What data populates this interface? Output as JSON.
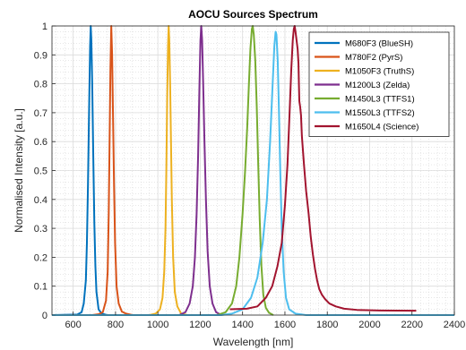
{
  "chart_data": {
    "type": "line",
    "title": "AOCU Sources Spectrum",
    "xlabel": "Wavelength [nm]",
    "ylabel": "Normalised Intensity [a.u.]",
    "xlim": [
      500,
      2400
    ],
    "ylim": [
      0,
      1
    ],
    "xticks": [
      600,
      800,
      1000,
      1200,
      1400,
      1600,
      1800,
      2000,
      2200,
      2400
    ],
    "yticks": [
      0,
      0.1,
      0.2,
      0.3,
      0.4,
      0.5,
      0.6,
      0.7,
      0.8,
      0.9,
      1
    ],
    "xtick_labels": [
      "600",
      "800",
      "1000",
      "1200",
      "1400",
      "1600",
      "1800",
      "2000",
      "2200",
      "2400"
    ],
    "ytick_labels": [
      "0",
      "0.1",
      "0.2",
      "0.3",
      "0.4",
      "0.5",
      "0.6",
      "0.7",
      "0.8",
      "0.9",
      "1"
    ],
    "grid": true,
    "minor_grid": true,
    "legend_position": "top-right",
    "series": [
      {
        "name": "M680F3 (BlueSH)",
        "color": "#0072BD",
        "points": [
          [
            500,
            0
          ],
          [
            620,
            0.002
          ],
          [
            640,
            0.01
          ],
          [
            650,
            0.04
          ],
          [
            660,
            0.12
          ],
          [
            665,
            0.25
          ],
          [
            670,
            0.45
          ],
          [
            675,
            0.7
          ],
          [
            680,
            0.93
          ],
          [
            683,
            1
          ],
          [
            686,
            0.95
          ],
          [
            690,
            0.8
          ],
          [
            695,
            0.55
          ],
          [
            700,
            0.32
          ],
          [
            705,
            0.17
          ],
          [
            710,
            0.08
          ],
          [
            720,
            0.02
          ],
          [
            735,
            0.005
          ],
          [
            760,
            0
          ]
        ]
      },
      {
        "name": "M780F2 (PyrS)",
        "color": "#D95319",
        "points": [
          [
            500,
            0
          ],
          [
            690,
            0
          ],
          [
            720,
            0.003
          ],
          [
            740,
            0.01
          ],
          [
            755,
            0.05
          ],
          [
            763,
            0.15
          ],
          [
            768,
            0.35
          ],
          [
            772,
            0.6
          ],
          [
            776,
            0.85
          ],
          [
            780,
            1
          ],
          [
            784,
            0.9
          ],
          [
            788,
            0.7
          ],
          [
            793,
            0.45
          ],
          [
            798,
            0.25
          ],
          [
            805,
            0.1
          ],
          [
            815,
            0.04
          ],
          [
            830,
            0.012
          ],
          [
            850,
            0.005
          ],
          [
            880,
            0
          ]
        ]
      },
      {
        "name": "M1050F3 (TruthS)",
        "color": "#EDB120",
        "points": [
          [
            500,
            0
          ],
          [
            960,
            0
          ],
          [
            990,
            0.005
          ],
          [
            1010,
            0.02
          ],
          [
            1022,
            0.06
          ],
          [
            1030,
            0.15
          ],
          [
            1036,
            0.3
          ],
          [
            1040,
            0.5
          ],
          [
            1044,
            0.75
          ],
          [
            1048,
            0.93
          ],
          [
            1051,
            1
          ],
          [
            1054,
            0.95
          ],
          [
            1058,
            0.8
          ],
          [
            1062,
            0.6
          ],
          [
            1066,
            0.4
          ],
          [
            1072,
            0.2
          ],
          [
            1080,
            0.08
          ],
          [
            1092,
            0.03
          ],
          [
            1110,
            0.005
          ],
          [
            1140,
            0
          ]
        ]
      },
      {
        "name": "M1200L3 (Zelda)",
        "color": "#7E2F8E",
        "points": [
          [
            500,
            0
          ],
          [
            1100,
            0
          ],
          [
            1130,
            0.01
          ],
          [
            1150,
            0.04
          ],
          [
            1165,
            0.1
          ],
          [
            1175,
            0.2
          ],
          [
            1183,
            0.35
          ],
          [
            1190,
            0.55
          ],
          [
            1196,
            0.78
          ],
          [
            1201,
            0.95
          ],
          [
            1205,
            1
          ],
          [
            1209,
            0.95
          ],
          [
            1214,
            0.8
          ],
          [
            1220,
            0.6
          ],
          [
            1227,
            0.4
          ],
          [
            1235,
            0.22
          ],
          [
            1245,
            0.1
          ],
          [
            1258,
            0.04
          ],
          [
            1275,
            0.01
          ],
          [
            1300,
            0
          ]
        ]
      },
      {
        "name": "M1450L3 (TTFS1)",
        "color": "#77AC30",
        "points": [
          [
            500,
            0
          ],
          [
            1280,
            0
          ],
          [
            1320,
            0.01
          ],
          [
            1350,
            0.04
          ],
          [
            1370,
            0.1
          ],
          [
            1385,
            0.2
          ],
          [
            1400,
            0.35
          ],
          [
            1412,
            0.5
          ],
          [
            1422,
            0.65
          ],
          [
            1430,
            0.8
          ],
          [
            1437,
            0.92
          ],
          [
            1444,
            0.99
          ],
          [
            1448,
            1
          ],
          [
            1453,
            0.97
          ],
          [
            1460,
            0.88
          ],
          [
            1467,
            0.72
          ],
          [
            1474,
            0.52
          ],
          [
            1481,
            0.33
          ],
          [
            1489,
            0.17
          ],
          [
            1498,
            0.07
          ],
          [
            1510,
            0.025
          ],
          [
            1525,
            0.008
          ],
          [
            1545,
            0
          ]
        ]
      },
      {
        "name": "M1550L3 (TTFS2)",
        "color": "#4DBEEE",
        "points": [
          [
            500,
            0
          ],
          [
            1300,
            0
          ],
          [
            1350,
            0.005
          ],
          [
            1400,
            0.02
          ],
          [
            1440,
            0.06
          ],
          [
            1470,
            0.13
          ],
          [
            1495,
            0.25
          ],
          [
            1515,
            0.4
          ],
          [
            1530,
            0.6
          ],
          [
            1542,
            0.8
          ],
          [
            1550,
            0.93
          ],
          [
            1556,
            0.98
          ],
          [
            1560,
            0.97
          ],
          [
            1566,
            0.88
          ],
          [
            1572,
            0.7
          ],
          [
            1578,
            0.5
          ],
          [
            1585,
            0.3
          ],
          [
            1594,
            0.15
          ],
          [
            1605,
            0.06
          ],
          [
            1620,
            0.02
          ],
          [
            1650,
            0.005
          ],
          [
            1700,
            0
          ],
          [
            2400,
            0
          ]
        ]
      },
      {
        "name": "M1650L4 (Science)",
        "color": "#A2142F",
        "points": [
          [
            1340,
            0.02
          ],
          [
            1420,
            0.022
          ],
          [
            1470,
            0.03
          ],
          [
            1510,
            0.06
          ],
          [
            1540,
            0.1
          ],
          [
            1565,
            0.17
          ],
          [
            1585,
            0.25
          ],
          [
            1600,
            0.38
          ],
          [
            1612,
            0.52
          ],
          [
            1622,
            0.7
          ],
          [
            1630,
            0.85
          ],
          [
            1637,
            0.95
          ],
          [
            1642,
            0.99
          ],
          [
            1646,
            1
          ],
          [
            1650,
            0.98
          ],
          [
            1655,
            0.95
          ],
          [
            1660,
            0.92
          ],
          [
            1664,
            0.87
          ],
          [
            1666,
            0.8
          ],
          [
            1668,
            0.74
          ],
          [
            1672,
            0.72
          ],
          [
            1676,
            0.69
          ],
          [
            1680,
            0.62
          ],
          [
            1690,
            0.52
          ],
          [
            1700,
            0.43
          ],
          [
            1712,
            0.35
          ],
          [
            1722,
            0.27
          ],
          [
            1732,
            0.21
          ],
          [
            1742,
            0.16
          ],
          [
            1752,
            0.12
          ],
          [
            1762,
            0.09
          ],
          [
            1775,
            0.07
          ],
          [
            1790,
            0.055
          ],
          [
            1810,
            0.04
          ],
          [
            1840,
            0.03
          ],
          [
            1880,
            0.022
          ],
          [
            1940,
            0.018
          ],
          [
            2050,
            0.016
          ],
          [
            2220,
            0.015
          ]
        ]
      }
    ]
  }
}
